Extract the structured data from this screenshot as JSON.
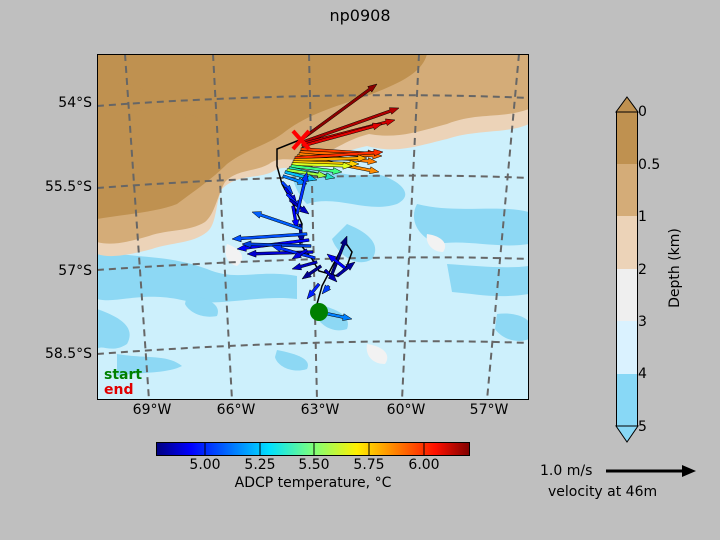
{
  "title": "np0908",
  "map": {
    "lat_labels": [
      "54°S",
      "55.5°S",
      "57°S",
      "58.5°S"
    ],
    "lon_labels": [
      "69°W",
      "66°W",
      "63°W",
      "60°W",
      "57°W"
    ],
    "legend_start": "start",
    "legend_end": "end",
    "start_color": "#008000",
    "end_color": "#ff0000"
  },
  "temperature_colorbar": {
    "label": "ADCP temperature, °C",
    "ticks": [
      "5.00",
      "5.25",
      "5.50",
      "5.75",
      "6.00"
    ],
    "colormap": "jet"
  },
  "depth_colorbar": {
    "label": "Depth (km)",
    "ticks": [
      "0",
      "0.5",
      "1",
      "2",
      "3",
      "4",
      "5"
    ],
    "colors": [
      "#bf9150",
      "#d4ac78",
      "#ecd3b8",
      "#efefef",
      "#daf2ff",
      "#88d8f6"
    ]
  },
  "scale": {
    "speed_label": "1.0 m/s",
    "depth_label": "velocity at 46m"
  }
}
